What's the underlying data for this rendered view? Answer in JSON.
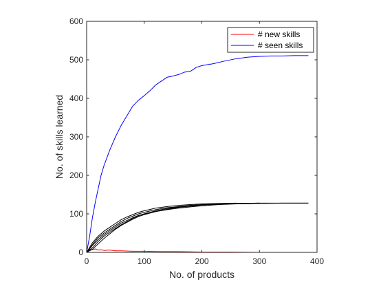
{
  "chart_data": {
    "type": "line",
    "xlabel": "No. of products",
    "ylabel": "No. of skills learned",
    "xlim": [
      0,
      400
    ],
    "ylim": [
      0,
      600
    ],
    "xticks": [
      "0",
      "100",
      "200",
      "300",
      "400"
    ],
    "yticks": [
      "0",
      "100",
      "200",
      "300",
      "400",
      "500",
      "600"
    ],
    "grid": false,
    "legend_position": "top-right",
    "series": [
      {
        "name": "# new skills",
        "color": "#ff0000",
        "in_legend": true,
        "x": [
          0,
          3,
          6,
          10,
          15,
          20,
          25,
          30,
          40,
          50,
          60,
          80,
          100,
          130,
          160,
          200,
          250,
          300,
          350,
          385
        ],
        "y": [
          0,
          5,
          8,
          7,
          9,
          6,
          7,
          5,
          6,
          4,
          4,
          3,
          3,
          2,
          2,
          1,
          1,
          0,
          0,
          0
        ]
      },
      {
        "name": "# seen skills",
        "color": "#0000ff",
        "in_legend": true,
        "x": [
          0,
          5,
          10,
          15,
          20,
          25,
          30,
          40,
          50,
          60,
          70,
          80,
          90,
          100,
          110,
          120,
          130,
          140,
          150,
          160,
          170,
          180,
          190,
          200,
          220,
          240,
          260,
          280,
          300,
          320,
          340,
          360,
          385
        ],
        "y": [
          0,
          40,
          90,
          130,
          165,
          200,
          225,
          265,
          300,
          330,
          355,
          380,
          395,
          407,
          420,
          435,
          445,
          455,
          458,
          462,
          468,
          470,
          480,
          485,
          490,
          497,
          503,
          507,
          509,
          510,
          510,
          511,
          511
        ]
      },
      {
        "name": "",
        "color": "#000000",
        "in_legend": false,
        "x": [
          0,
          10,
          20,
          30,
          40,
          50,
          60,
          70,
          80,
          90,
          100,
          120,
          140,
          160,
          180,
          200,
          230,
          260,
          300,
          340,
          385
        ],
        "y": [
          0,
          20,
          38,
          50,
          60,
          70,
          80,
          88,
          94,
          100,
          104,
          111,
          116,
          119,
          122,
          124,
          126,
          127,
          128,
          128,
          128
        ]
      },
      {
        "name": "",
        "color": "#000000",
        "in_legend": false,
        "x": [
          0,
          10,
          20,
          30,
          40,
          50,
          60,
          70,
          80,
          90,
          100,
          120,
          140,
          160,
          180,
          200,
          230,
          260,
          300
        ],
        "y": [
          0,
          12,
          28,
          42,
          52,
          62,
          72,
          80,
          88,
          95,
          100,
          108,
          114,
          118,
          121,
          124,
          126,
          127,
          128
        ]
      },
      {
        "name": "",
        "color": "#000000",
        "in_legend": false,
        "x": [
          0,
          10,
          20,
          30,
          40,
          50,
          60,
          70,
          80,
          90,
          100,
          120,
          140,
          160,
          180,
          200,
          230,
          260
        ],
        "y": [
          0,
          25,
          42,
          55,
          65,
          75,
          85,
          92,
          98,
          104,
          108,
          115,
          119,
          122,
          124,
          126,
          127,
          128
        ]
      },
      {
        "name": "",
        "color": "#000000",
        "in_legend": false,
        "x": [
          0,
          10,
          20,
          30,
          40,
          50,
          60,
          70,
          80,
          90,
          100,
          120,
          140,
          160,
          180,
          200,
          230,
          260,
          300,
          340,
          385
        ],
        "y": [
          0,
          18,
          33,
          46,
          56,
          66,
          76,
          83,
          90,
          96,
          100,
          106,
          111,
          115,
          118,
          121,
          124,
          126,
          127,
          128,
          128
        ]
      },
      {
        "name": "",
        "color": "#000000",
        "in_legend": false,
        "x": [
          0,
          10,
          20,
          30,
          40,
          50,
          60,
          70,
          80,
          90,
          100,
          120,
          140,
          160,
          180,
          200,
          230,
          260,
          300
        ],
        "y": [
          0,
          8,
          22,
          36,
          48,
          60,
          70,
          78,
          86,
          93,
          98,
          106,
          112,
          117,
          120,
          123,
          125,
          127,
          128
        ]
      }
    ]
  }
}
